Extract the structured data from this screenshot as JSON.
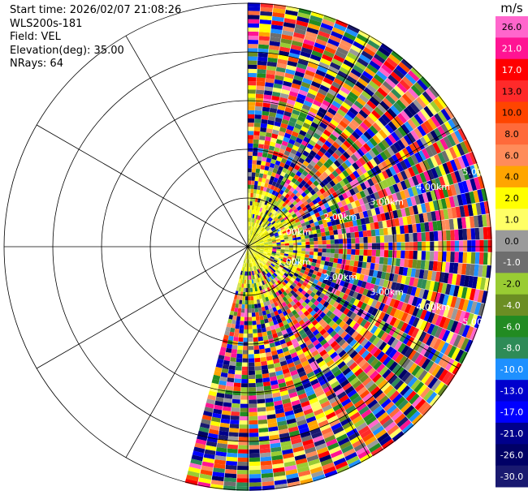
{
  "header": {
    "start_time": "Start time: 2026/02/07 21:08:26",
    "instrument": "WLS200s-181",
    "field": "Field: VEL",
    "elevation": "Elevation(deg): 35.00",
    "nrays": "NRays: 64"
  },
  "chart_data": {
    "type": "heatmap",
    "projection": "polar-ppi",
    "field": "VEL",
    "units": "m/s",
    "elevation_deg": 35.0,
    "n_rays": 64,
    "sector_deg": [
      0,
      195
    ],
    "max_range_km": 5.0,
    "range_rings_km": [
      1,
      2,
      3,
      4,
      5
    ],
    "ring_labels": [
      "1.00km",
      "2.00km",
      "3.00km",
      "4.00km",
      "5.00km"
    ],
    "ring_label_bearing_deg": [
      72,
      108
    ],
    "grid": true,
    "colorbar": {
      "unit_label": "m/s",
      "ticks": [
        "26.0",
        "21.0",
        "17.0",
        "13.0",
        "10.0",
        "8.0",
        "6.0",
        "4.0",
        "2.0",
        "1.0",
        "0.0",
        "-1.0",
        "-2.0",
        "-4.0",
        "-6.0",
        "-8.0",
        "-10.0",
        "-13.0",
        "-17.0",
        "-21.0",
        "-26.0",
        "-30.0"
      ],
      "colors": [
        "#ff66cc",
        "#ff1493",
        "#ff0000",
        "#ff2a2a",
        "#ff4500",
        "#ff6a3a",
        "#ff8c5a",
        "#ffa500",
        "#ffff00",
        "#ffff66",
        "#9a9a9a",
        "#6e6e6e",
        "#99cc33",
        "#6b8e23",
        "#228b22",
        "#2e8b57",
        "#1e90ff",
        "#0000cd",
        "#0000ff",
        "#00008b",
        "#000066",
        "#191970"
      ]
    },
    "near_field_velocity_range": [
      0.0,
      2.0
    ]
  }
}
